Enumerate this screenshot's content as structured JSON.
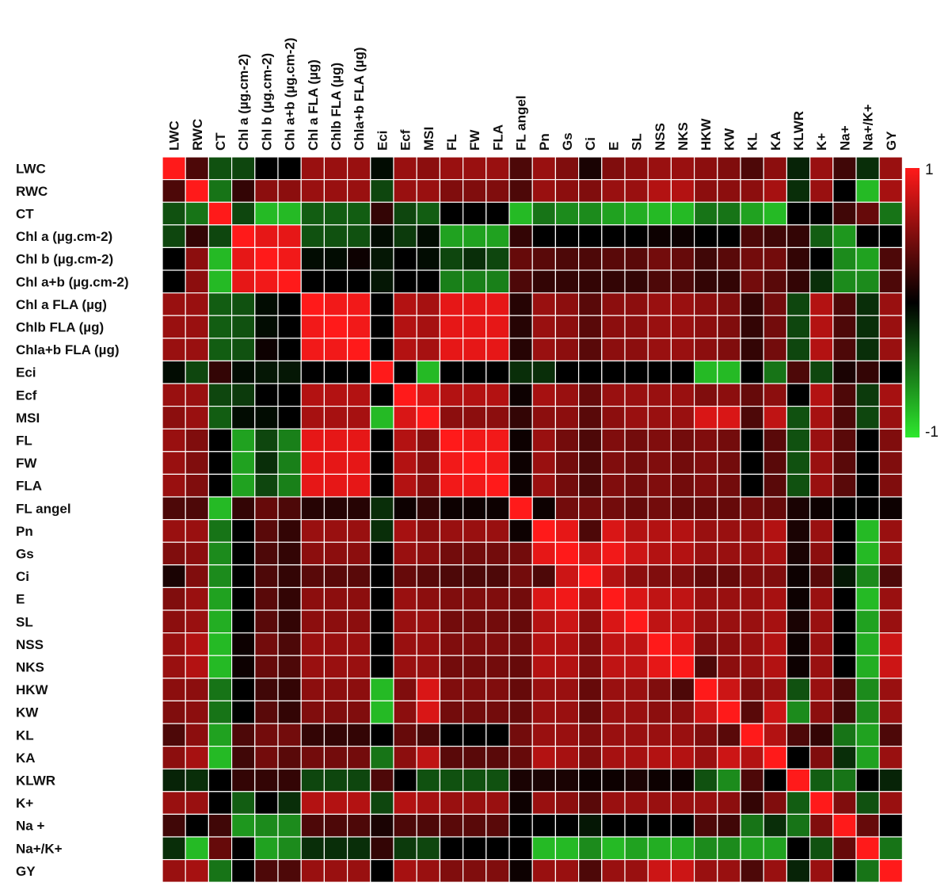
{
  "chart_data": {
    "type": "heatmap",
    "labels": [
      "LWC",
      "RWC",
      "CT",
      "Chl a (µg.cm-2)",
      "Chl b (µg.cm-2)",
      "Chl a+b (µg.cm-2)",
      "Chl a FLA (µg)",
      "Chlb FLA (µg)",
      "Chla+b FLA (µg)",
      "Eci",
      "Ecf",
      "MSI",
      "FL",
      "FW",
      "FLA",
      "FL angel",
      "Pn",
      "Gs",
      "Ci",
      "E",
      "SL",
      "NSS",
      "NKS",
      "HKW",
      "KW",
      "KL",
      "KA",
      "KLWR",
      "K+",
      "Na+",
      "Na+/K+",
      "GY"
    ],
    "row_labels": [
      "LWC",
      "RWC",
      "CT",
      "Chl a (µg.cm-2)",
      "Chl b (µg.cm-2)",
      "Chl a+b (µg.cm-2)",
      "Chl a FLA (µg)",
      "Chlb FLA (µg)",
      "Chla+b FLA (µg)",
      "Eci",
      "Ecf",
      "MSI",
      "FL",
      "FW",
      "FLA",
      "FL angel",
      "Pn",
      "Gs",
      "Ci",
      "E",
      "SL",
      "NSS",
      "NKS",
      "HKW",
      "KW",
      "KL",
      "KA",
      "KLWR",
      "K+",
      "Na +",
      "Na+/K+",
      "GY"
    ],
    "column_labels": [
      "LWC",
      "RWC",
      "CT",
      "Chl a (µg.cm-2)",
      "Chl b (µg.cm-2)",
      "Chl a+b (µg.cm-2)",
      "Chl a FLA (µg)",
      "Chlb FLA (µg)",
      "Chla+b FLA (µg)",
      "Eci",
      "Ecf",
      "MSI",
      "FL",
      "FW",
      "FLA",
      "FL angel",
      "Pn",
      "Gs",
      "Ci",
      "E",
      "SL",
      "NSS",
      "NKS",
      "HKW",
      "KW",
      "KL",
      "KA",
      "KLWR",
      "K+",
      "Na+",
      "Na+/K+",
      "GY"
    ],
    "colorscale": {
      "min": -1,
      "max": 1,
      "low_color": "#2ee82e",
      "mid_color": "#000000",
      "high_color": "#ff1a1a",
      "min_label": "-1",
      "max_label": "1"
    },
    "matrix": [
      [
        1,
        0.3,
        -0.35,
        -0.3,
        0,
        0,
        0.6,
        0.6,
        0.6,
        -0.05,
        0.6,
        0.55,
        0.6,
        0.6,
        0.6,
        0.3,
        0.6,
        0.5,
        0.1,
        0.5,
        0.55,
        0.6,
        0.6,
        0.55,
        0.5,
        0.3,
        0.55,
        -0.15,
        0.6,
        0.25,
        -0.2,
        0.6
      ],
      [
        0.3,
        1,
        -0.5,
        0.2,
        0.55,
        0.55,
        0.6,
        0.6,
        0.6,
        -0.3,
        0.6,
        0.6,
        0.5,
        0.5,
        0.5,
        0.3,
        0.6,
        0.55,
        0.5,
        0.6,
        0.6,
        0.7,
        0.7,
        0.55,
        0.55,
        0.55,
        0.65,
        -0.2,
        0.6,
        0,
        -0.8,
        0.65
      ],
      [
        -0.35,
        -0.5,
        1,
        -0.3,
        -0.8,
        -0.8,
        -0.4,
        -0.4,
        -0.4,
        0.2,
        -0.3,
        -0.4,
        0,
        0,
        0,
        -0.8,
        -0.5,
        -0.6,
        -0.6,
        -0.7,
        -0.75,
        -0.8,
        -0.8,
        -0.5,
        -0.5,
        -0.7,
        -0.8,
        0,
        0,
        0.25,
        0.4,
        -0.5
      ],
      [
        -0.3,
        0.2,
        -0.3,
        1,
        0.9,
        0.9,
        -0.35,
        -0.35,
        -0.35,
        -0.05,
        -0.25,
        -0.05,
        -0.7,
        -0.7,
        -0.7,
        0.2,
        0,
        0,
        0,
        0,
        0,
        0.05,
        0.05,
        0,
        0,
        0.3,
        0.25,
        0.2,
        -0.4,
        -0.65,
        0,
        0
      ],
      [
        0,
        0.55,
        -0.8,
        0.9,
        1,
        0.95,
        -0.05,
        -0.05,
        0.05,
        -0.1,
        0,
        -0.05,
        -0.3,
        -0.2,
        -0.3,
        0.4,
        0.35,
        0.3,
        0.3,
        0.35,
        0.35,
        0.45,
        0.4,
        0.25,
        0.35,
        0.45,
        0.45,
        0.2,
        0,
        -0.6,
        -0.7,
        0.3
      ],
      [
        0,
        0.55,
        -0.8,
        0.9,
        0.95,
        1,
        0,
        0,
        0,
        -0.1,
        0,
        0,
        -0.55,
        -0.55,
        -0.55,
        0.3,
        0.2,
        0.2,
        0.2,
        0.2,
        0.2,
        0.3,
        0.3,
        0.2,
        0.2,
        0.45,
        0.35,
        0.2,
        -0.2,
        -0.6,
        -0.6,
        0.3
      ],
      [
        0.6,
        0.6,
        -0.4,
        -0.35,
        -0.05,
        0,
        1,
        0.95,
        0.95,
        0,
        0.7,
        0.65,
        0.9,
        0.9,
        0.9,
        0.15,
        0.6,
        0.55,
        0.35,
        0.55,
        0.55,
        0.6,
        0.6,
        0.55,
        0.5,
        0.2,
        0.45,
        -0.3,
        0.7,
        0.3,
        -0.2,
        0.6
      ],
      [
        0.6,
        0.6,
        -0.4,
        -0.35,
        -0.05,
        0,
        0.95,
        1,
        0.95,
        0,
        0.7,
        0.65,
        0.9,
        0.9,
        0.9,
        0.15,
        0.6,
        0.55,
        0.35,
        0.55,
        0.55,
        0.6,
        0.6,
        0.55,
        0.5,
        0.2,
        0.45,
        -0.3,
        0.7,
        0.3,
        -0.2,
        0.6
      ],
      [
        0.6,
        0.6,
        -0.4,
        -0.35,
        0.05,
        0,
        0.95,
        0.95,
        1,
        0,
        0.7,
        0.65,
        0.9,
        0.9,
        0.9,
        0.15,
        0.6,
        0.55,
        0.35,
        0.55,
        0.55,
        0.6,
        0.6,
        0.55,
        0.5,
        0.2,
        0.45,
        -0.3,
        0.7,
        0.3,
        -0.2,
        0.6
      ],
      [
        -0.05,
        -0.3,
        0.2,
        -0.05,
        -0.1,
        -0.1,
        0,
        0,
        0,
        1,
        0,
        -0.8,
        0,
        0,
        0,
        -0.2,
        -0.2,
        0,
        0,
        0,
        0,
        0,
        0,
        -0.8,
        -0.8,
        0,
        -0.5,
        0.3,
        -0.3,
        0.1,
        0.2,
        0
      ],
      [
        0.6,
        0.6,
        -0.3,
        -0.25,
        0,
        0,
        0.7,
        0.7,
        0.7,
        0,
        1,
        0.85,
        0.7,
        0.7,
        0.7,
        0.05,
        0.65,
        0.6,
        0.4,
        0.6,
        0.6,
        0.6,
        0.6,
        0.5,
        0.55,
        0.4,
        0.55,
        0,
        0.7,
        0.3,
        -0.25,
        0.65
      ],
      [
        0.55,
        0.6,
        -0.4,
        -0.05,
        -0.05,
        0,
        0.65,
        0.65,
        0.65,
        -0.8,
        0.85,
        1,
        0.55,
        0.55,
        0.55,
        0.2,
        0.55,
        0.55,
        0.35,
        0.55,
        0.6,
        0.6,
        0.6,
        0.85,
        0.85,
        0.3,
        0.75,
        -0.35,
        0.65,
        0.3,
        -0.3,
        0.6
      ],
      [
        0.6,
        0.5,
        0,
        -0.7,
        -0.3,
        -0.55,
        0.9,
        0.9,
        0.9,
        0,
        0.7,
        0.55,
        1,
        0.95,
        0.95,
        0.05,
        0.6,
        0.45,
        0.3,
        0.5,
        0.45,
        0.5,
        0.45,
        0.5,
        0.45,
        0,
        0.35,
        -0.35,
        0.6,
        0.35,
        0,
        0.5
      ],
      [
        0.6,
        0.5,
        0,
        -0.7,
        -0.2,
        -0.55,
        0.9,
        0.9,
        0.9,
        0,
        0.7,
        0.55,
        0.95,
        1,
        0.95,
        0.05,
        0.6,
        0.45,
        0.3,
        0.5,
        0.45,
        0.5,
        0.45,
        0.5,
        0.45,
        0,
        0.35,
        -0.35,
        0.6,
        0.35,
        0,
        0.5
      ],
      [
        0.6,
        0.5,
        0,
        -0.7,
        -0.3,
        -0.55,
        0.9,
        0.9,
        0.9,
        0,
        0.7,
        0.55,
        0.95,
        0.95,
        1,
        0.05,
        0.6,
        0.45,
        0.3,
        0.5,
        0.45,
        0.5,
        0.45,
        0.5,
        0.45,
        0,
        0.35,
        -0.35,
        0.6,
        0.35,
        0,
        0.5
      ],
      [
        0.3,
        0.3,
        -0.8,
        0.2,
        0.4,
        0.3,
        0.15,
        0.15,
        0.15,
        -0.2,
        0.05,
        0.2,
        0.05,
        0.05,
        0.05,
        1,
        0.05,
        0.45,
        0.45,
        0.45,
        0.4,
        0.45,
        0.4,
        0.4,
        0.4,
        0.45,
        0.4,
        0.1,
        0.05,
        0,
        0,
        0.05
      ],
      [
        0.6,
        0.6,
        -0.5,
        0,
        0.35,
        0.2,
        0.6,
        0.6,
        0.6,
        -0.2,
        0.65,
        0.55,
        0.6,
        0.6,
        0.6,
        0.05,
        1,
        0.9,
        0.3,
        0.85,
        0.7,
        0.7,
        0.7,
        0.6,
        0.6,
        0.6,
        0.7,
        0.1,
        0.6,
        0,
        -0.8,
        0.6
      ],
      [
        0.5,
        0.55,
        -0.6,
        0,
        0.3,
        0.2,
        0.55,
        0.55,
        0.55,
        0,
        0.6,
        0.55,
        0.45,
        0.45,
        0.45,
        0.45,
        0.9,
        1,
        0.8,
        0.95,
        0.8,
        0.7,
        0.7,
        0.6,
        0.6,
        0.6,
        0.65,
        0.1,
        0.55,
        0,
        -0.8,
        0.6
      ],
      [
        0.1,
        0.5,
        -0.6,
        0,
        0.3,
        0.2,
        0.35,
        0.35,
        0.35,
        0,
        0.4,
        0.35,
        0.3,
        0.3,
        0.3,
        0.45,
        0.3,
        0.8,
        1,
        0.7,
        0.55,
        0.5,
        0.5,
        0.4,
        0.4,
        0.5,
        0.5,
        0.05,
        0.35,
        -0.1,
        -0.6,
        0.3
      ],
      [
        0.5,
        0.6,
        -0.7,
        0,
        0.35,
        0.2,
        0.55,
        0.55,
        0.55,
        0,
        0.6,
        0.55,
        0.5,
        0.5,
        0.5,
        0.45,
        0.85,
        0.95,
        0.7,
        1,
        0.85,
        0.75,
        0.75,
        0.6,
        0.6,
        0.6,
        0.65,
        0.05,
        0.6,
        0,
        -0.8,
        0.6
      ],
      [
        0.55,
        0.6,
        -0.75,
        0,
        0.35,
        0.2,
        0.55,
        0.55,
        0.55,
        0,
        0.6,
        0.6,
        0.45,
        0.45,
        0.45,
        0.4,
        0.7,
        0.8,
        0.55,
        0.85,
        1,
        0.75,
        0.75,
        0.6,
        0.6,
        0.6,
        0.65,
        0.1,
        0.6,
        0,
        -0.7,
        0.6
      ],
      [
        0.6,
        0.7,
        -0.8,
        0.05,
        0.45,
        0.3,
        0.6,
        0.6,
        0.6,
        0,
        0.6,
        0.6,
        0.5,
        0.5,
        0.5,
        0.45,
        0.7,
        0.7,
        0.5,
        0.75,
        0.75,
        1,
        0.9,
        0.5,
        0.55,
        0.6,
        0.7,
        0.05,
        0.6,
        0,
        -0.75,
        0.8
      ],
      [
        0.6,
        0.7,
        -0.8,
        0.05,
        0.4,
        0.3,
        0.6,
        0.6,
        0.6,
        0,
        0.6,
        0.6,
        0.45,
        0.45,
        0.45,
        0.4,
        0.7,
        0.7,
        0.5,
        0.75,
        0.75,
        0.9,
        1,
        0.3,
        0.55,
        0.6,
        0.7,
        0.05,
        0.6,
        0,
        -0.75,
        0.8
      ],
      [
        0.55,
        0.55,
        -0.5,
        0,
        0.25,
        0.2,
        0.55,
        0.55,
        0.55,
        -0.8,
        0.5,
        0.85,
        0.5,
        0.5,
        0.5,
        0.4,
        0.6,
        0.6,
        0.4,
        0.6,
        0.6,
        0.5,
        0.3,
        1,
        0.8,
        0.5,
        0.6,
        -0.35,
        0.6,
        0.3,
        -0.6,
        0.6
      ],
      [
        0.5,
        0.55,
        -0.5,
        0,
        0.35,
        0.2,
        0.5,
        0.5,
        0.5,
        -0.8,
        0.55,
        0.85,
        0.45,
        0.45,
        0.45,
        0.4,
        0.6,
        0.6,
        0.4,
        0.6,
        0.6,
        0.55,
        0.55,
        0.8,
        1,
        0.35,
        0.8,
        -0.6,
        0.55,
        0.25,
        -0.6,
        0.6
      ],
      [
        0.3,
        0.55,
        -0.7,
        0.3,
        0.45,
        0.45,
        0.2,
        0.2,
        0.2,
        0,
        0.4,
        0.3,
        0,
        0,
        0,
        0.45,
        0.6,
        0.6,
        0.5,
        0.6,
        0.6,
        0.6,
        0.6,
        0.5,
        0.35,
        1,
        0.7,
        0.3,
        0.2,
        -0.5,
        -0.7,
        0.3
      ],
      [
        0.55,
        0.65,
        -0.8,
        0.25,
        0.45,
        0.35,
        0.45,
        0.45,
        0.45,
        -0.5,
        0.55,
        0.75,
        0.35,
        0.35,
        0.35,
        0.4,
        0.7,
        0.65,
        0.5,
        0.65,
        0.65,
        0.7,
        0.7,
        0.6,
        0.8,
        0.7,
        1,
        0,
        0.5,
        -0.2,
        -0.7,
        0.6
      ],
      [
        -0.15,
        -0.2,
        0,
        0.2,
        0.2,
        0.2,
        -0.3,
        -0.3,
        -0.3,
        0.3,
        0,
        -0.35,
        -0.35,
        -0.35,
        -0.35,
        0.1,
        0.1,
        0.1,
        0.05,
        0.05,
        0.1,
        0.05,
        0.05,
        -0.35,
        -0.6,
        0.3,
        0,
        1,
        -0.4,
        -0.5,
        0,
        -0.15
      ],
      [
        0.6,
        0.6,
        0,
        -0.4,
        0,
        -0.2,
        0.7,
        0.7,
        0.7,
        -0.3,
        0.7,
        0.65,
        0.6,
        0.6,
        0.6,
        0.05,
        0.6,
        0.55,
        0.35,
        0.6,
        0.6,
        0.6,
        0.6,
        0.6,
        0.55,
        0.2,
        0.5,
        -0.4,
        1,
        0.5,
        -0.35,
        0.6
      ],
      [
        0.25,
        0,
        0.25,
        -0.65,
        -0.6,
        -0.6,
        0.3,
        0.3,
        0.3,
        0.1,
        0.3,
        0.3,
        0.35,
        0.35,
        0.35,
        0,
        0,
        0,
        -0.1,
        0,
        0,
        0,
        0,
        0.3,
        0.25,
        -0.5,
        -0.2,
        -0.5,
        0.5,
        1,
        0.4,
        0
      ],
      [
        -0.2,
        -0.8,
        0.4,
        0,
        -0.7,
        -0.6,
        -0.2,
        -0.2,
        -0.2,
        0.2,
        -0.25,
        -0.3,
        0,
        0,
        0,
        0,
        -0.8,
        -0.8,
        -0.6,
        -0.8,
        -0.7,
        -0.75,
        -0.75,
        -0.6,
        -0.6,
        -0.7,
        -0.7,
        0,
        -0.35,
        0.4,
        1,
        -0.5
      ],
      [
        0.6,
        0.65,
        -0.5,
        0,
        0.3,
        0.3,
        0.6,
        0.6,
        0.6,
        0,
        0.65,
        0.6,
        0.5,
        0.5,
        0.5,
        0.05,
        0.6,
        0.6,
        0.3,
        0.6,
        0.6,
        0.8,
        0.8,
        0.6,
        0.6,
        0.3,
        0.6,
        -0.15,
        0.6,
        0,
        -0.5,
        1
      ]
    ]
  }
}
